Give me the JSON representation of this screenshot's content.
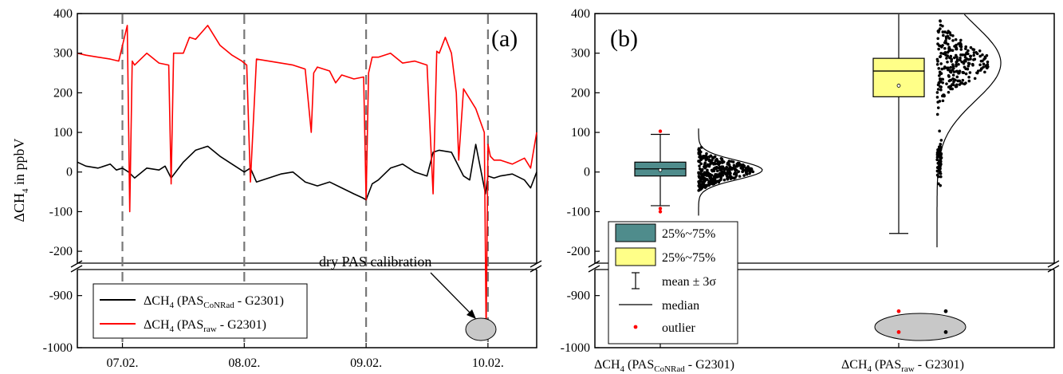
{
  "chart_data": [
    {
      "type": "line",
      "panel_label": "(a)",
      "ylabel_prefix": "ΔCH",
      "ylabel_sub": "4",
      "ylabel_suffix": " in ppbV",
      "x_ticks": [
        "07.02.",
        "08.02.",
        "09.02.",
        "10.02."
      ],
      "x_tick_days": [
        7.0,
        8.0,
        9.0,
        10.0
      ],
      "xlim_days": [
        6.63,
        10.4
      ],
      "calibration_lines_days": [
        7.0,
        8.0,
        9.0,
        10.0
      ],
      "y_ticks_upper": [
        "400",
        "300",
        "200",
        "100",
        "0",
        "-100",
        "-200"
      ],
      "y_ticks_lower": [
        "-900",
        "-1000"
      ],
      "y_tick_values_upper": [
        400,
        300,
        200,
        100,
        0,
        -100,
        -200
      ],
      "y_tick_values_lower": [
        -900,
        -1000
      ],
      "y_break": [
        -230,
        -850
      ],
      "ylim": [
        -1000,
        400
      ],
      "annotation": "dry PAS calibration",
      "series": [
        {
          "name_prefix": "ΔCH",
          "name_sub1": "4",
          "name_mid": " (PAS",
          "name_sub2": "CoNRad",
          "name_suffix": " - G2301)",
          "color": "#000000",
          "x_days": [
            6.63,
            6.7,
            6.8,
            6.9,
            6.95,
            7.0,
            7.05,
            7.1,
            7.2,
            7.3,
            7.35,
            7.4,
            7.5,
            7.6,
            7.7,
            7.8,
            7.9,
            8.0,
            8.05,
            8.1,
            8.2,
            8.3,
            8.4,
            8.5,
            8.6,
            8.7,
            8.8,
            8.9,
            8.97,
            9.0,
            9.05,
            9.1,
            9.2,
            9.3,
            9.4,
            9.5,
            9.55,
            9.6,
            9.7,
            9.8,
            9.85,
            9.9,
            9.98,
            10.0,
            10.05,
            10.1,
            10.2,
            10.3,
            10.35,
            10.4
          ],
          "y": [
            25,
            15,
            10,
            20,
            5,
            10,
            0,
            -15,
            10,
            5,
            15,
            -15,
            25,
            55,
            65,
            40,
            20,
            0,
            10,
            -25,
            -15,
            -5,
            0,
            -25,
            -35,
            -25,
            -40,
            -55,
            -65,
            -70,
            -30,
            -20,
            10,
            20,
            0,
            -10,
            50,
            55,
            50,
            -10,
            -20,
            70,
            -55,
            -10,
            -15,
            -10,
            -5,
            -20,
            -40,
            0
          ]
        },
        {
          "name_prefix": "ΔCH",
          "name_sub1": "4",
          "name_mid": " (PAS",
          "name_sub2": "raw",
          "name_suffix": " - G2301)",
          "color": "#ff0000",
          "x_days": [
            6.63,
            6.7,
            6.8,
            6.9,
            6.97,
            7.04,
            7.06,
            7.08,
            7.1,
            7.2,
            7.3,
            7.38,
            7.4,
            7.42,
            7.5,
            7.55,
            7.6,
            7.7,
            7.8,
            7.9,
            7.98,
            8.02,
            8.05,
            8.1,
            8.2,
            8.3,
            8.4,
            8.5,
            8.55,
            8.57,
            8.6,
            8.7,
            8.75,
            8.8,
            8.9,
            8.98,
            9.0,
            9.02,
            9.05,
            9.1,
            9.2,
            9.3,
            9.4,
            9.5,
            9.55,
            9.58,
            9.6,
            9.65,
            9.7,
            9.74,
            9.76,
            9.8,
            9.9,
            9.97,
            9.985,
            10.0,
            10.02,
            10.05,
            10.1,
            10.15,
            10.2,
            10.3,
            10.35,
            10.4
          ],
          "y": [
            300,
            295,
            290,
            285,
            280,
            370,
            -100,
            280,
            270,
            300,
            275,
            270,
            -30,
            300,
            300,
            340,
            335,
            370,
            320,
            295,
            280,
            270,
            -25,
            285,
            280,
            275,
            270,
            260,
            100,
            250,
            265,
            255,
            225,
            245,
            235,
            240,
            -70,
            250,
            290,
            290,
            300,
            275,
            280,
            270,
            -55,
            305,
            300,
            340,
            300,
            200,
            30,
            210,
            160,
            100,
            -970,
            70,
            40,
            30,
            30,
            25,
            20,
            35,
            10,
            100
          ]
        }
      ]
    },
    {
      "type": "box",
      "panel_label": "(b)",
      "y_ticks_upper": [
        "400",
        "300",
        "200",
        "100",
        "0",
        "-100",
        "-200"
      ],
      "y_ticks_lower": [
        "-900",
        "-1000"
      ],
      "y_tick_values_upper": [
        400,
        300,
        200,
        100,
        0,
        -100,
        -200
      ],
      "y_tick_values_lower": [
        -900,
        -1000
      ],
      "ylim": [
        -1000,
        400
      ],
      "categories": [
        {
          "name_prefix": "ΔCH",
          "name_sub1": "4",
          "name_mid": " (PAS",
          "name_sub2": "CoNRad",
          "name_suffix": " - G2301)",
          "q1": -10,
          "median": 8,
          "q3": 25,
          "mean": 5,
          "whisker_low": -85,
          "whisker_high": 95,
          "outliers": [
            103,
            -92,
            -100
          ],
          "dist_mean": 5,
          "dist_sd": 22,
          "color": "#4f8c8c"
        },
        {
          "name_prefix": "ΔCH",
          "name_sub1": "4",
          "name_mid": " (PAS",
          "name_sub2": "raw",
          "name_suffix": " - G2301)",
          "q1": 190,
          "median": 255,
          "q3": 287,
          "mean": 218,
          "whisker_low": -155,
          "whisker_high": 400,
          "outliers": [
            -930,
            -970
          ],
          "dist_mean": 275,
          "dist_sd": 45,
          "color": "#ffff88"
        }
      ],
      "legend": [
        {
          "kind": "box",
          "label": "25%~75%",
          "color": "#4f8c8c"
        },
        {
          "kind": "box",
          "label": "25%~75%",
          "color": "#ffff88"
        },
        {
          "kind": "whisker",
          "label": "mean ± 3σ"
        },
        {
          "kind": "line",
          "label": "median"
        },
        {
          "kind": "dot",
          "label": "outlier",
          "color": "#ff0000"
        }
      ]
    }
  ]
}
